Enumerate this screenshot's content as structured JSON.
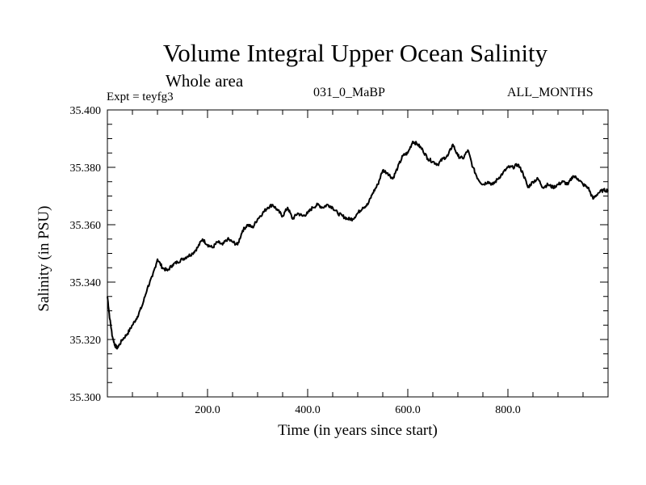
{
  "chart_data": {
    "type": "line",
    "title": "Volume Integral Upper Ocean Salinity",
    "subtitle": "Whole area",
    "expt_label": "Expt = teyfg3",
    "run_label": "031_0_MaBP",
    "months_label": "ALL_MONTHS",
    "xlabel": "Time (in years since start)",
    "ylabel": "Salinity (in PSU)",
    "xlim": [
      0,
      1000
    ],
    "ylim": [
      35.3,
      35.4
    ],
    "xticks": [
      {
        "value": 200,
        "label": "200.0"
      },
      {
        "value": 400,
        "label": "400.0"
      },
      {
        "value": 600,
        "label": "600.0"
      },
      {
        "value": 800,
        "label": "800.0"
      }
    ],
    "yticks": [
      {
        "value": 35.3,
        "label": "35.300"
      },
      {
        "value": 35.32,
        "label": "35.320"
      },
      {
        "value": 35.34,
        "label": "35.340"
      },
      {
        "value": 35.36,
        "label": "35.360"
      },
      {
        "value": 35.38,
        "label": "35.380"
      },
      {
        "value": 35.4,
        "label": "35.400"
      }
    ],
    "grid": false,
    "series": [
      {
        "name": "Salinity",
        "x": [
          0,
          5,
          10,
          15,
          20,
          30,
          40,
          50,
          60,
          70,
          80,
          90,
          100,
          110,
          120,
          130,
          140,
          150,
          160,
          170,
          180,
          190,
          200,
          210,
          220,
          230,
          240,
          250,
          260,
          270,
          280,
          290,
          300,
          310,
          320,
          330,
          340,
          350,
          360,
          370,
          380,
          390,
          400,
          410,
          420,
          430,
          440,
          450,
          460,
          470,
          480,
          490,
          500,
          510,
          520,
          530,
          540,
          550,
          560,
          570,
          580,
          590,
          600,
          610,
          620,
          630,
          640,
          650,
          660,
          670,
          680,
          690,
          700,
          710,
          720,
          730,
          740,
          750,
          760,
          770,
          780,
          790,
          800,
          810,
          820,
          830,
          840,
          850,
          860,
          870,
          880,
          890,
          900,
          910,
          920,
          930,
          940,
          950,
          960,
          970,
          980,
          990,
          1000
        ],
        "y": [
          35.335,
          35.327,
          35.321,
          35.318,
          35.317,
          35.32,
          35.322,
          35.325,
          35.328,
          35.332,
          35.338,
          35.342,
          35.348,
          35.345,
          35.344,
          35.346,
          35.347,
          35.348,
          35.349,
          35.35,
          35.352,
          35.355,
          35.353,
          35.352,
          35.354,
          35.353,
          35.355,
          35.354,
          35.353,
          35.358,
          35.36,
          35.359,
          35.362,
          35.364,
          35.366,
          35.367,
          35.365,
          35.363,
          35.366,
          35.362,
          35.364,
          35.363,
          35.364,
          35.366,
          35.367,
          35.366,
          35.367,
          35.366,
          35.364,
          35.363,
          35.362,
          35.362,
          35.364,
          35.366,
          35.367,
          35.371,
          35.374,
          35.379,
          35.378,
          35.376,
          35.38,
          35.384,
          35.385,
          35.389,
          35.388,
          35.386,
          35.383,
          35.382,
          35.381,
          35.383,
          35.384,
          35.388,
          35.384,
          35.383,
          35.386,
          35.38,
          35.376,
          35.374,
          35.375,
          35.374,
          35.376,
          35.378,
          35.38,
          35.38,
          35.381,
          35.378,
          35.373,
          35.375,
          35.376,
          35.373,
          35.374,
          35.373,
          35.374,
          35.375,
          35.374,
          35.377,
          35.376,
          35.374,
          35.373,
          35.369,
          35.371,
          35.372,
          35.372
        ]
      }
    ]
  }
}
